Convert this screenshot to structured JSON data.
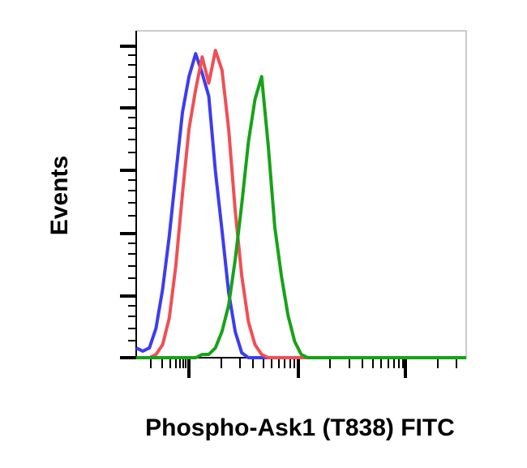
{
  "chart_data": {
    "type": "line",
    "x_label": "Phospho-Ask1 (T838) FITC",
    "y_label": "Events",
    "xlim": [
      0,
      100
    ],
    "ylim": [
      0,
      100
    ],
    "x": [
      0,
      2,
      4,
      6,
      8,
      10,
      12,
      14,
      16,
      18,
      20,
      22,
      24,
      26,
      28,
      30,
      32,
      34,
      36,
      38,
      40,
      42,
      44,
      46,
      48,
      50,
      52,
      54,
      56,
      58,
      60,
      62,
      64,
      66,
      68,
      70,
      72,
      74,
      76,
      78,
      80,
      82,
      84,
      86,
      88,
      90,
      92,
      94,
      96,
      98,
      100
    ],
    "series": [
      {
        "color": "#3c3cf2",
        "values": [
          3,
          2,
          3,
          9,
          21,
          37,
          56,
          75,
          86,
          93,
          87,
          80,
          57,
          39,
          20,
          8,
          1.5,
          0,
          0,
          0,
          0,
          0,
          0,
          0,
          0,
          0,
          0,
          0,
          0,
          0,
          0,
          0,
          0,
          0,
          0,
          0,
          0,
          0,
          0,
          0,
          0,
          0,
          0,
          0,
          0,
          0,
          0,
          0,
          0,
          0,
          0
        ]
      },
      {
        "color": "#f04f55",
        "values": [
          0,
          0,
          0,
          1,
          4,
          12,
          28,
          50,
          70,
          82,
          92,
          84,
          94,
          88,
          70,
          45,
          25,
          11,
          4,
          1,
          0,
          0,
          0,
          0,
          0,
          0,
          0,
          0,
          0,
          0,
          0,
          0,
          0,
          0,
          0,
          0,
          0,
          0,
          0,
          0,
          0,
          0,
          0,
          0,
          0,
          0,
          0,
          0,
          0,
          0,
          0
        ]
      },
      {
        "color": "#16a316",
        "values": [
          0,
          0,
          0,
          0,
          0,
          0,
          0,
          0,
          0,
          0,
          1,
          1,
          3,
          8,
          16,
          30,
          47,
          66,
          79,
          86,
          65,
          40,
          25,
          13,
          5,
          1,
          0,
          0,
          0,
          0,
          0,
          0,
          0,
          0,
          0,
          0,
          0,
          0,
          0,
          0,
          0,
          0,
          0,
          0,
          0,
          0,
          0,
          0,
          0,
          0,
          0
        ]
      }
    ]
  }
}
